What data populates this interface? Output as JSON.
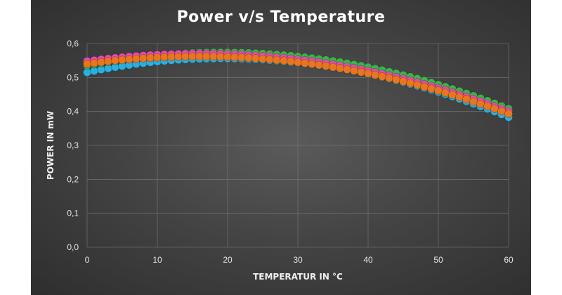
{
  "chart_data": {
    "type": "scatter",
    "title": "Power v/s Temperature",
    "xlabel": "TEMPERATUR IN °C",
    "ylabel": "POWER IN mW",
    "xlim": [
      0,
      60
    ],
    "ylim": [
      0,
      0.6
    ],
    "xticks": [
      "0",
      "10",
      "20",
      "30",
      "40",
      "50",
      "60"
    ],
    "yticks": [
      "0,0",
      "0,1",
      "0,2",
      "0,3",
      "0,4",
      "0,5",
      "0,6"
    ],
    "grid": true,
    "legend": "none",
    "series": [
      {
        "color": "#2ab0e0",
        "x0": 0,
        "x1": 60,
        "step": 1,
        "peak_x": 19,
        "peak_y": 0.556,
        "y_at_0": 0.515,
        "y_at_60": 0.383
      },
      {
        "color": "#3cb34a",
        "x0": 0,
        "x1": 60,
        "step": 1,
        "peak_x": 19,
        "peak_y": 0.574,
        "y_at_0": 0.535,
        "y_at_60": 0.408
      },
      {
        "color": "#9c5bd6",
        "x0": 0,
        "x1": 60,
        "step": 1,
        "peak_x": 17,
        "peak_y": 0.566,
        "y_at_0": 0.54,
        "y_at_60": 0.398
      },
      {
        "color": "#e84ab0",
        "x0": 0,
        "x1": 60,
        "step": 1,
        "peak_x": 16,
        "peak_y": 0.57,
        "y_at_0": 0.548,
        "y_at_60": 0.4
      },
      {
        "color": "#e8751f",
        "x0": 0,
        "x1": 60,
        "step": 1,
        "peak_x": 16,
        "peak_y": 0.562,
        "y_at_0": 0.54,
        "y_at_60": 0.393
      }
    ]
  }
}
